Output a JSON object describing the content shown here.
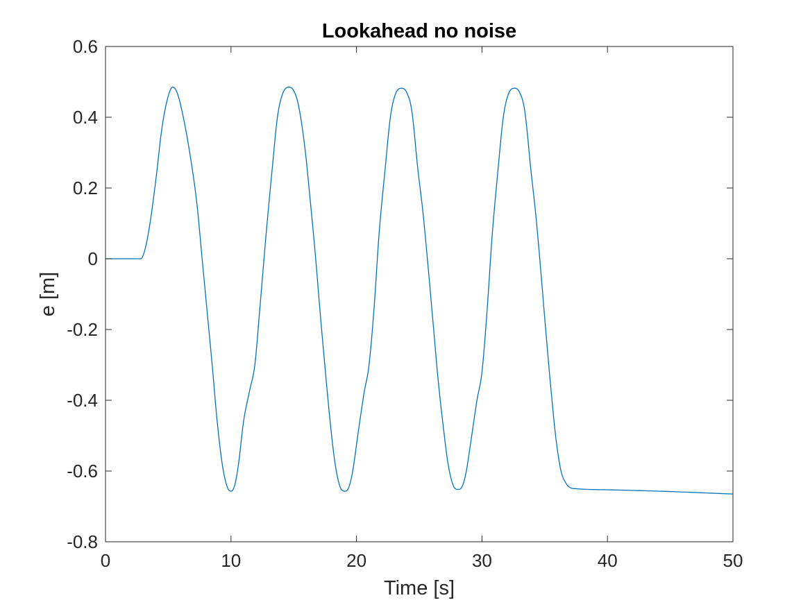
{
  "chart_data": {
    "type": "line",
    "title": "Lookahead no noise",
    "xlabel": "Time [s]",
    "ylabel": "e [m]",
    "xlim": [
      0,
      50
    ],
    "ylim": [
      -0.8,
      0.6
    ],
    "xticks": [
      0,
      10,
      20,
      30,
      40,
      50
    ],
    "xtick_labels": [
      "0",
      "10",
      "20",
      "30",
      "40",
      "50"
    ],
    "yticks": [
      -0.8,
      -0.6,
      -0.4,
      -0.2,
      0,
      0.2,
      0.4,
      0.6
    ],
    "ytick_labels": [
      "-0.8",
      "-0.6",
      "-0.4",
      "-0.2",
      "0",
      "0.2",
      "0.4",
      "0.6"
    ],
    "grid": false,
    "box": true,
    "series": [
      {
        "color": "#0072bd",
        "x": [
          0,
          1.0,
          2.0,
          2.8,
          3.1,
          3.5,
          4.0,
          4.5,
          5.0,
          5.35,
          5.7,
          6.2,
          6.8,
          7.3,
          7.7,
          8.1,
          8.5,
          8.9,
          9.3,
          9.7,
          10.0,
          10.3,
          10.6,
          11.0,
          11.5,
          11.9,
          12.3,
          12.8,
          13.3,
          13.7,
          14.1,
          14.6,
          15.0,
          15.4,
          15.9,
          16.3,
          16.7,
          17.1,
          17.5,
          17.9,
          18.3,
          18.7,
          19.1,
          19.4,
          19.7,
          20.1,
          20.6,
          21.0,
          21.4,
          21.8,
          22.3,
          22.7,
          23.1,
          23.6,
          24.0,
          24.4,
          24.9,
          25.3,
          25.7,
          26.1,
          26.5,
          26.9,
          27.3,
          27.7,
          28.1,
          28.4,
          28.7,
          29.1,
          29.6,
          30.0,
          30.4,
          30.8,
          31.3,
          31.7,
          32.1,
          32.6,
          33.0,
          33.4,
          33.9,
          34.3,
          34.7,
          35.1,
          35.5,
          35.9,
          36.3,
          36.7,
          37.1,
          37.5,
          37.9,
          38.5,
          40.0,
          45.0,
          50.0
        ],
        "y": [
          0,
          0,
          0,
          0.0,
          0.02,
          0.09,
          0.22,
          0.37,
          0.46,
          0.485,
          0.47,
          0.4,
          0.28,
          0.15,
          0.0,
          -0.15,
          -0.3,
          -0.46,
          -0.58,
          -0.645,
          -0.657,
          -0.64,
          -0.58,
          -0.46,
          -0.37,
          -0.3,
          -0.14,
          0.07,
          0.26,
          0.4,
          0.465,
          0.485,
          0.475,
          0.43,
          0.31,
          0.17,
          0.02,
          -0.15,
          -0.31,
          -0.46,
          -0.58,
          -0.645,
          -0.657,
          -0.645,
          -0.6,
          -0.5,
          -0.38,
          -0.3,
          -0.14,
          0.07,
          0.26,
          0.4,
          0.465,
          0.482,
          0.47,
          0.42,
          0.25,
          0.13,
          -0.02,
          -0.18,
          -0.34,
          -0.47,
          -0.58,
          -0.64,
          -0.652,
          -0.645,
          -0.61,
          -0.52,
          -0.4,
          -0.32,
          -0.15,
          0.06,
          0.26,
          0.4,
          0.465,
          0.482,
          0.47,
          0.42,
          0.25,
          0.12,
          -0.04,
          -0.21,
          -0.37,
          -0.51,
          -0.6,
          -0.635,
          -0.648,
          -0.65,
          -0.651,
          -0.652,
          -0.653,
          -0.658,
          -0.665
        ]
      }
    ]
  }
}
